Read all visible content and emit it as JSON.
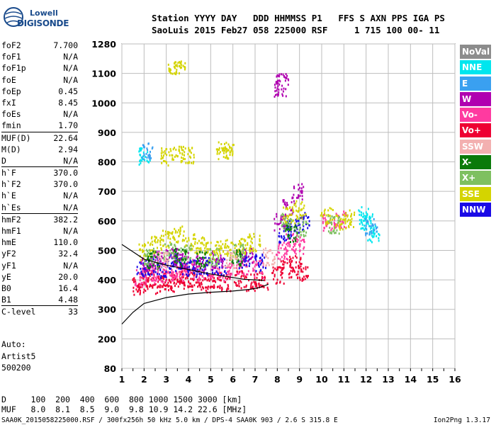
{
  "logo": {
    "line1": "Lowell",
    "line2": "DIGISONDE"
  },
  "header": {
    "line1": "Station YYYY DAY   DDD HHMMSS P1   FFS S AXN PPS IGA PS",
    "line2": "SaoLuis 2015 Feb27 058 225000 RSF     1 715 100 00- 11"
  },
  "params": [
    {
      "k": "foF2",
      "v": "7.700"
    },
    {
      "k": "foF1",
      "v": "N/A"
    },
    {
      "k": "foF1p",
      "v": "N/A"
    },
    {
      "k": "foE",
      "v": "N/A"
    },
    {
      "k": "foEp",
      "v": "0.45"
    },
    {
      "k": "fxI",
      "v": "8.45"
    },
    {
      "k": "foEs",
      "v": "N/A"
    },
    {
      "k": "fmin",
      "v": "1.70"
    },
    {
      "k": "MUF(D)",
      "v": "22.64",
      "sep": true
    },
    {
      "k": "M(D)",
      "v": "2.94"
    },
    {
      "k": "D",
      "v": "N/A"
    },
    {
      "k": "h`F",
      "v": "370.0",
      "sep": true
    },
    {
      "k": "h`F2",
      "v": "370.0"
    },
    {
      "k": "h`E",
      "v": "N/A"
    },
    {
      "k": "h`Es",
      "v": "N/A"
    },
    {
      "k": "hmF2",
      "v": "382.2",
      "sep": true
    },
    {
      "k": "hmF1",
      "v": "N/A"
    },
    {
      "k": "hmE",
      "v": "110.0"
    },
    {
      "k": "yF2",
      "v": "32.4"
    },
    {
      "k": "yF1",
      "v": "N/A"
    },
    {
      "k": "yE",
      "v": "20.0"
    },
    {
      "k": "B0",
      "v": "16.4"
    },
    {
      "k": "B1",
      "v": "4.48"
    },
    {
      "k": "C-level",
      "v": "33",
      "sep": true
    }
  ],
  "auto": {
    "l1": "Auto:",
    "l2": "Artist5",
    "l3": "500200"
  },
  "legend": [
    {
      "label": "NoVal",
      "color": "#8c8c8c"
    },
    {
      "label": "NNE",
      "color": "#00e6ee"
    },
    {
      "label": "E",
      "color": "#3aa0f0"
    },
    {
      "label": "W",
      "color": "#b000b0"
    },
    {
      "label": "Vo-",
      "color": "#ff3aa0"
    },
    {
      "label": "Vo+",
      "color": "#ee0033"
    },
    {
      "label": "SSW",
      "color": "#f3b0b0"
    },
    {
      "label": "X-",
      "color": "#0a7a0a"
    },
    {
      "label": "X+",
      "color": "#7ec060"
    },
    {
      "label": "SSE",
      "color": "#d4d400"
    },
    {
      "label": "NNW",
      "color": "#1a0ae6"
    }
  ],
  "bottom": {
    "d_row": "D     100  200  400  600  800 1000 1500 3000 [km]",
    "muf_row": "MUF   8.0  8.1  8.5  9.0  9.8 10.9 14.2 22.6 [MHz]"
  },
  "footer": {
    "left": "SAA0K_2015058225000.RSF / 300fx256h 50 kHz 5.0 km / DPS-4 SAA0K 903 / 2.6 S 315.8 E",
    "right": "Ion2Png 1.3.17"
  },
  "chart_data": {
    "type": "scatter",
    "x_ticks": [
      1,
      2,
      3,
      4,
      5,
      6,
      7,
      8,
      9,
      10,
      11,
      12,
      13,
      14,
      15,
      16
    ],
    "y_ticks": [
      80,
      200,
      300,
      400,
      500,
      600,
      700,
      800,
      900,
      1000,
      1100,
      1280
    ],
    "xlim": [
      1,
      16
    ],
    "grid": true,
    "series": [
      {
        "color": "#ee0033",
        "points": [
          [
            1.7,
            380
          ],
          [
            2.0,
            395
          ],
          [
            2.3,
            410
          ],
          [
            2.6,
            385
          ],
          [
            3.0,
            400
          ],
          [
            3.3,
            390
          ],
          [
            3.6,
            420
          ],
          [
            4.0,
            395
          ],
          [
            4.3,
            410
          ],
          [
            4.7,
            390
          ],
          [
            5.2,
            400
          ],
          [
            5.6,
            395
          ],
          [
            6.3,
            405
          ],
          [
            6.8,
            395
          ],
          [
            7.3,
            400
          ],
          [
            8.0,
            420
          ],
          [
            8.4,
            440
          ],
          [
            8.8,
            460
          ],
          [
            9.1,
            430
          ]
        ]
      },
      {
        "color": "#ff3aa0",
        "points": [
          [
            1.8,
            410
          ],
          [
            2.2,
            430
          ],
          [
            2.7,
            420
          ],
          [
            3.1,
            440
          ],
          [
            3.5,
            430
          ],
          [
            3.9,
            445
          ],
          [
            4.4,
            430
          ],
          [
            5.1,
            440
          ],
          [
            5.7,
            430
          ],
          [
            6.4,
            450
          ],
          [
            7.1,
            440
          ],
          [
            8.2,
            500
          ],
          [
            8.6,
            530
          ],
          [
            9.0,
            520
          ],
          [
            10.3,
            600
          ],
          [
            10.8,
            610
          ]
        ]
      },
      {
        "color": "#1a0ae6",
        "points": [
          [
            1.9,
            440
          ],
          [
            2.4,
            450
          ],
          [
            2.9,
            440
          ],
          [
            3.4,
            460
          ],
          [
            3.8,
            450
          ],
          [
            4.2,
            440
          ],
          [
            4.8,
            450
          ],
          [
            5.4,
            445
          ],
          [
            6.5,
            470
          ],
          [
            7.2,
            460
          ],
          [
            8.3,
            560
          ],
          [
            8.7,
            580
          ],
          [
            9.2,
            600
          ]
        ]
      },
      {
        "color": "#b000b0",
        "points": [
          [
            2.1,
            460
          ],
          [
            2.6,
            470
          ],
          [
            3.2,
            480
          ],
          [
            3.7,
            470
          ],
          [
            4.5,
            460
          ],
          [
            5.3,
            470
          ],
          [
            6.6,
            490
          ],
          [
            8.1,
            600
          ],
          [
            8.5,
            650
          ],
          [
            8.9,
            700
          ],
          [
            8.1,
            1050
          ],
          [
            8.2,
            1080
          ]
        ]
      },
      {
        "color": "#d4d400",
        "points": [
          [
            2.0,
            500
          ],
          [
            2.5,
            520
          ],
          [
            3.0,
            540
          ],
          [
            3.5,
            560
          ],
          [
            4.0,
            530
          ],
          [
            4.5,
            520
          ],
          [
            5.0,
            500
          ],
          [
            5.5,
            510
          ],
          [
            6.0,
            500
          ],
          [
            6.5,
            520
          ],
          [
            7.0,
            530
          ],
          [
            3.0,
            820
          ],
          [
            3.5,
            830
          ],
          [
            4.0,
            825
          ],
          [
            5.5,
            840
          ],
          [
            5.8,
            845
          ],
          [
            8.5,
            620
          ],
          [
            9.0,
            640
          ],
          [
            10.2,
            620
          ],
          [
            10.8,
            600
          ],
          [
            11.2,
            610
          ],
          [
            3.3,
            1130
          ],
          [
            3.6,
            1150
          ]
        ]
      },
      {
        "color": "#7ec060",
        "points": [
          [
            2.2,
            480
          ],
          [
            3.1,
            500
          ],
          [
            3.9,
            490
          ],
          [
            5.1,
            480
          ],
          [
            6.2,
            500
          ],
          [
            8.4,
            600
          ],
          [
            9.1,
            580
          ],
          [
            10.5,
            590
          ]
        ]
      },
      {
        "color": "#0a7a0a",
        "points": [
          [
            2.4,
            470
          ],
          [
            3.6,
            480
          ],
          [
            4.6,
            470
          ],
          [
            6.1,
            480
          ],
          [
            8.6,
            560
          ]
        ]
      },
      {
        "color": "#00e6ee",
        "points": [
          [
            2.0,
            820
          ],
          [
            12.0,
            600
          ],
          [
            12.3,
            560
          ],
          [
            11.9,
            620
          ]
        ]
      },
      {
        "color": "#3aa0f0",
        "points": [
          [
            2.1,
            840
          ],
          [
            12.2,
            580
          ]
        ]
      },
      {
        "color": "#f3b0b0",
        "points": [
          [
            2.8,
            470
          ],
          [
            5.9,
            470
          ],
          [
            7.6,
            480
          ]
        ]
      }
    ],
    "traces": [
      {
        "color": "#000000",
        "points": [
          [
            1.0,
            250
          ],
          [
            1.5,
            290
          ],
          [
            2.0,
            320
          ],
          [
            3.0,
            340
          ],
          [
            4.0,
            352
          ],
          [
            5.0,
            358
          ],
          [
            6.0,
            362
          ],
          [
            6.8,
            368
          ],
          [
            7.2,
            374
          ],
          [
            7.6,
            385
          ]
        ]
      },
      {
        "color": "#000000",
        "points": [
          [
            1.0,
            520
          ],
          [
            1.5,
            495
          ],
          [
            2.0,
            470
          ],
          [
            3.0,
            450
          ],
          [
            4.0,
            435
          ],
          [
            5.0,
            420
          ],
          [
            6.0,
            408
          ],
          [
            6.5,
            402
          ],
          [
            7.0,
            400
          ],
          [
            7.4,
            398
          ]
        ]
      }
    ]
  }
}
